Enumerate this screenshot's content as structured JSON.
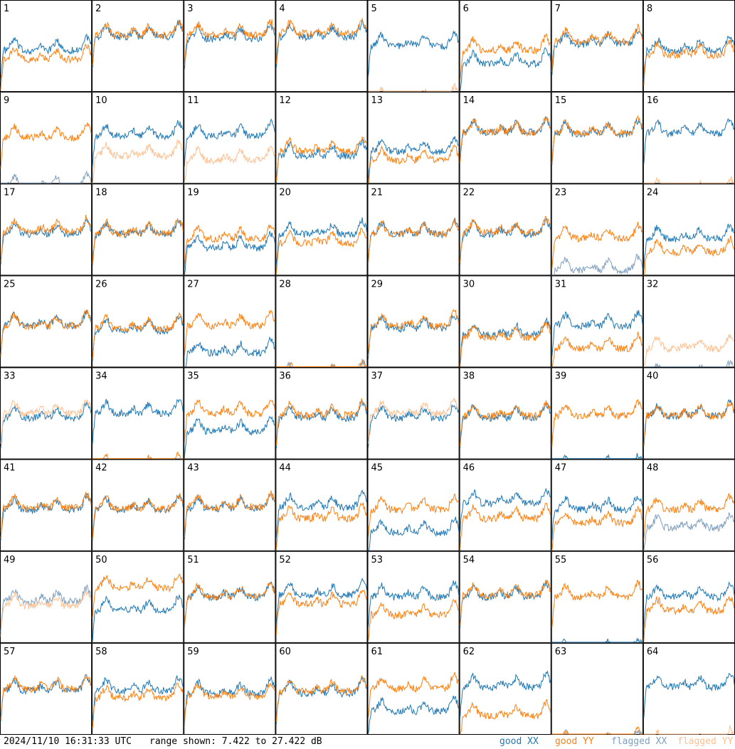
{
  "footer": {
    "timestamp": "2024/11/10 16:31:33 UTC",
    "range_text": "range shown: 7.422 to 27.422 dB"
  },
  "legend": [
    {
      "id": "good-xx",
      "label": "good XX",
      "color": "#1f77b4"
    },
    {
      "id": "good-yy",
      "label": "good YY",
      "color": "#ff7f0e"
    },
    {
      "id": "flagged-xx",
      "label": "flagged XX",
      "color": "#7f9fbf"
    },
    {
      "id": "flagged-yy",
      "label": "flagged YY",
      "color": "#ffbf8f"
    }
  ],
  "chart_data": {
    "type": "line",
    "grid": false,
    "ylim": [
      7.422,
      27.422
    ],
    "layout": {
      "rows": 8,
      "cols": 8
    },
    "panels": [
      {
        "label": "1",
        "xx": "good",
        "yy": "good",
        "xx_level": 0.55,
        "yy_level": 0.45
      },
      {
        "label": "2",
        "xx": "good",
        "yy": "good",
        "xx_level": 0.7,
        "yy_level": 0.72
      },
      {
        "label": "3",
        "xx": "good",
        "yy": "good",
        "xx_level": 0.68,
        "yy_level": 0.72
      },
      {
        "label": "4",
        "xx": "good",
        "yy": "good",
        "xx_level": 0.7,
        "yy_level": 0.74
      },
      {
        "label": "5",
        "xx": "good",
        "yy": "flagged",
        "xx_level": 0.6,
        "yy_level": 0.0
      },
      {
        "label": "6",
        "xx": "good",
        "yy": "good",
        "xx_level": 0.4,
        "yy_level": 0.55
      },
      {
        "label": "7",
        "xx": "good",
        "yy": "good",
        "xx_level": 0.62,
        "yy_level": 0.65
      },
      {
        "label": "8",
        "xx": "good",
        "yy": "good",
        "xx_level": 0.55,
        "yy_level": 0.5
      },
      {
        "label": "9",
        "xx": "flagged",
        "yy": "good",
        "xx_level": 0.05,
        "yy_level": 0.6
      },
      {
        "label": "10",
        "xx": "good",
        "yy": "flagged",
        "xx_level": 0.62,
        "yy_level": 0.4
      },
      {
        "label": "11",
        "xx": "good",
        "yy": "flagged",
        "xx_level": 0.62,
        "yy_level": 0.35
      },
      {
        "label": "12",
        "xx": "good",
        "yy": "good",
        "xx_level": 0.4,
        "yy_level": 0.45
      },
      {
        "label": "13",
        "xx": "good",
        "yy": "good",
        "xx_level": 0.45,
        "yy_level": 0.35
      },
      {
        "label": "14",
        "xx": "good",
        "yy": "good",
        "xx_level": 0.66,
        "yy_level": 0.66
      },
      {
        "label": "15",
        "xx": "good",
        "yy": "good",
        "xx_level": 0.64,
        "yy_level": 0.65
      },
      {
        "label": "16",
        "xx": "good",
        "yy": "flagged",
        "xx_level": 0.65,
        "yy_level": 0.0
      },
      {
        "label": "17",
        "xx": "good",
        "yy": "good",
        "xx_level": 0.55,
        "yy_level": 0.58
      },
      {
        "label": "18",
        "xx": "good",
        "yy": "good",
        "xx_level": 0.55,
        "yy_level": 0.56
      },
      {
        "label": "19",
        "xx": "good",
        "yy": "good",
        "xx_level": 0.4,
        "yy_level": 0.5
      },
      {
        "label": "20",
        "xx": "good",
        "yy": "good",
        "xx_level": 0.55,
        "yy_level": 0.45
      },
      {
        "label": "21",
        "xx": "good",
        "yy": "good",
        "xx_level": 0.55,
        "yy_level": 0.55
      },
      {
        "label": "22",
        "xx": "good",
        "yy": "good",
        "xx_level": 0.55,
        "yy_level": 0.57
      },
      {
        "label": "23",
        "xx": "flagged",
        "yy": "good",
        "xx_level": 0.15,
        "yy_level": 0.5
      },
      {
        "label": "24",
        "xx": "good",
        "yy": "good",
        "xx_level": 0.5,
        "yy_level": 0.35
      },
      {
        "label": "25",
        "xx": "good",
        "yy": "good",
        "xx_level": 0.55,
        "yy_level": 0.55
      },
      {
        "label": "26",
        "xx": "good",
        "yy": "good",
        "xx_level": 0.5,
        "yy_level": 0.52
      },
      {
        "label": "27",
        "xx": "good",
        "yy": "good",
        "xx_level": 0.25,
        "yy_level": 0.55
      },
      {
        "label": "28",
        "xx": "flagged",
        "yy": "good",
        "xx_level": 0.0,
        "yy_level": 0.0
      },
      {
        "label": "29",
        "xx": "good",
        "yy": "good",
        "xx_level": 0.52,
        "yy_level": 0.55
      },
      {
        "label": "30",
        "xx": "good",
        "yy": "good",
        "xx_level": 0.45,
        "yy_level": 0.42
      },
      {
        "label": "31",
        "xx": "good",
        "yy": "good",
        "xx_level": 0.55,
        "yy_level": 0.3
      },
      {
        "label": "32",
        "xx": "flagged",
        "yy": "flagged",
        "xx_level": 0.0,
        "yy_level": 0.3
      },
      {
        "label": "33",
        "xx": "good",
        "yy": "flagged",
        "xx_level": 0.55,
        "yy_level": 0.6
      },
      {
        "label": "34",
        "xx": "good",
        "yy": "good",
        "xx_level": 0.6,
        "yy_level": 0.0
      },
      {
        "label": "35",
        "xx": "good",
        "yy": "good",
        "xx_level": 0.4,
        "yy_level": 0.6
      },
      {
        "label": "36",
        "xx": "good",
        "yy": "good",
        "xx_level": 0.55,
        "yy_level": 0.58
      },
      {
        "label": "37",
        "xx": "good",
        "yy": "flagged",
        "xx_level": 0.55,
        "yy_level": 0.6
      },
      {
        "label": "38",
        "xx": "good",
        "yy": "good",
        "xx_level": 0.55,
        "yy_level": 0.57
      },
      {
        "label": "39",
        "xx": "good",
        "yy": "good",
        "xx_level": 0.0,
        "yy_level": 0.57
      },
      {
        "label": "40",
        "xx": "good",
        "yy": "good",
        "xx_level": 0.57,
        "yy_level": 0.57
      },
      {
        "label": "41",
        "xx": "good",
        "yy": "good",
        "xx_level": 0.55,
        "yy_level": 0.57
      },
      {
        "label": "42",
        "xx": "good",
        "yy": "good",
        "xx_level": 0.55,
        "yy_level": 0.56
      },
      {
        "label": "43",
        "xx": "good",
        "yy": "good",
        "xx_level": 0.56,
        "yy_level": 0.58
      },
      {
        "label": "44",
        "xx": "good",
        "yy": "good",
        "xx_level": 0.58,
        "yy_level": 0.45
      },
      {
        "label": "45",
        "xx": "good",
        "yy": "good",
        "xx_level": 0.3,
        "yy_level": 0.55
      },
      {
        "label": "46",
        "xx": "good",
        "yy": "good",
        "xx_level": 0.62,
        "yy_level": 0.45
      },
      {
        "label": "47",
        "xx": "good",
        "yy": "good",
        "xx_level": 0.55,
        "yy_level": 0.4
      },
      {
        "label": "48",
        "xx": "flagged",
        "yy": "good",
        "xx_level": 0.35,
        "yy_level": 0.55
      },
      {
        "label": "49",
        "xx": "flagged",
        "yy": "flagged",
        "xx_level": 0.55,
        "yy_level": 0.5
      },
      {
        "label": "50",
        "xx": "good",
        "yy": "good",
        "xx_level": 0.45,
        "yy_level": 0.7
      },
      {
        "label": "51",
        "xx": "good",
        "yy": "good",
        "xx_level": 0.6,
        "yy_level": 0.6
      },
      {
        "label": "52",
        "xx": "good",
        "yy": "good",
        "xx_level": 0.62,
        "yy_level": 0.52
      },
      {
        "label": "53",
        "xx": "good",
        "yy": "good",
        "xx_level": 0.6,
        "yy_level": 0.4
      },
      {
        "label": "54",
        "xx": "good",
        "yy": "good",
        "xx_level": 0.6,
        "yy_level": 0.62
      },
      {
        "label": "55",
        "xx": "good",
        "yy": "good",
        "xx_level": 0.0,
        "yy_level": 0.6
      },
      {
        "label": "56",
        "xx": "good",
        "yy": "good",
        "xx_level": 0.6,
        "yy_level": 0.45
      },
      {
        "label": "57",
        "xx": "good",
        "yy": "good",
        "xx_level": 0.58,
        "yy_level": 0.6
      },
      {
        "label": "58",
        "xx": "good",
        "yy": "good",
        "xx_level": 0.58,
        "yy_level": 0.5
      },
      {
        "label": "59",
        "xx": "good",
        "yy": "good",
        "xx_level": 0.55,
        "yy_level": 0.52
      },
      {
        "label": "60",
        "xx": "good",
        "yy": "good",
        "xx_level": 0.55,
        "yy_level": 0.57
      },
      {
        "label": "61",
        "xx": "good",
        "yy": "good",
        "xx_level": 0.35,
        "yy_level": 0.6
      },
      {
        "label": "62",
        "xx": "good",
        "yy": "good",
        "xx_level": 0.62,
        "yy_level": 0.3
      },
      {
        "label": "63",
        "xx": "flagged",
        "yy": "good",
        "xx_level": 0.0,
        "yy_level": 0.0
      },
      {
        "label": "64",
        "xx": "good",
        "yy": "flagged",
        "xx_level": 0.62,
        "yy_level": 0.0
      }
    ]
  }
}
